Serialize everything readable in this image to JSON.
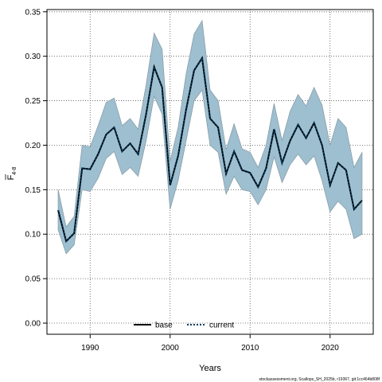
{
  "chart_data": {
    "type": "line",
    "xlabel": "Years",
    "ylabel_main": "F",
    "ylabel_sub": "4-8",
    "xlim": [
      1984.6,
      2025.4
    ],
    "ylim": [
      -0.0125,
      0.3525
    ],
    "xticks": [
      1990,
      2000,
      2010,
      2020
    ],
    "yticks": [
      0.0,
      0.05,
      0.1,
      0.15,
      0.2,
      0.25,
      0.3,
      0.35
    ],
    "ytick_labels": [
      "0.00",
      "0.05",
      "0.10",
      "0.15",
      "0.20",
      "0.25",
      "0.30",
      "0.35"
    ],
    "grid": true,
    "legend_position": "bottom",
    "x": [
      1986,
      1987,
      1988,
      1989,
      1990,
      1991,
      1992,
      1993,
      1994,
      1995,
      1996,
      1997,
      1998,
      1999,
      2000,
      2001,
      2002,
      2003,
      2004,
      2005,
      2006,
      2007,
      2008,
      2009,
      2010,
      2011,
      2012,
      2013,
      2014,
      2015,
      2016,
      2017,
      2018,
      2019,
      2020,
      2021,
      2022,
      2023,
      2024
    ],
    "band": {
      "lower": [
        0.105,
        0.078,
        0.088,
        0.15,
        0.148,
        0.163,
        0.185,
        0.193,
        0.167,
        0.175,
        0.165,
        0.205,
        0.255,
        0.235,
        0.128,
        0.16,
        0.205,
        0.25,
        0.262,
        0.2,
        0.192,
        0.145,
        0.165,
        0.15,
        0.148,
        0.133,
        0.15,
        0.187,
        0.158,
        0.178,
        0.19,
        0.178,
        0.188,
        0.16,
        0.125,
        0.137,
        0.128,
        0.095,
        0.1
      ],
      "upper": [
        0.15,
        0.108,
        0.12,
        0.2,
        0.198,
        0.222,
        0.248,
        0.253,
        0.222,
        0.23,
        0.218,
        0.268,
        0.326,
        0.308,
        0.182,
        0.22,
        0.28,
        0.325,
        0.34,
        0.262,
        0.25,
        0.195,
        0.224,
        0.196,
        0.192,
        0.175,
        0.2,
        0.247,
        0.205,
        0.238,
        0.257,
        0.244,
        0.265,
        0.245,
        0.2,
        0.23,
        0.22,
        0.175,
        0.192
      ],
      "color": "#9dbfd0",
      "edge": "#8a9ea8"
    },
    "series": [
      {
        "name": "base",
        "color": "#000000",
        "style": "solid",
        "values": [
          0.127,
          0.092,
          0.101,
          0.174,
          0.173,
          0.19,
          0.212,
          0.22,
          0.193,
          0.202,
          0.19,
          0.235,
          0.288,
          0.265,
          0.155,
          0.188,
          0.24,
          0.284,
          0.298,
          0.23,
          0.22,
          0.168,
          0.193,
          0.172,
          0.169,
          0.153,
          0.174,
          0.218,
          0.18,
          0.205,
          0.223,
          0.208,
          0.225,
          0.2,
          0.155,
          0.18,
          0.172,
          0.128,
          0.138
        ]
      },
      {
        "name": "current",
        "color": "#0b3c5d",
        "style": "dotted",
        "values": [
          0.127,
          0.092,
          0.101,
          0.174,
          0.173,
          0.19,
          0.212,
          0.22,
          0.193,
          0.202,
          0.19,
          0.235,
          0.288,
          0.265,
          0.155,
          0.188,
          0.24,
          0.284,
          0.298,
          0.23,
          0.22,
          0.168,
          0.193,
          0.172,
          0.169,
          0.153,
          0.174,
          0.218,
          0.18,
          0.205,
          0.223,
          0.208,
          0.225,
          0.2,
          0.155,
          0.18,
          0.172,
          0.128,
          0.138
        ]
      }
    ]
  },
  "footnote": "stockassessment.org, Scallops_SH_2025b, r19367, git:1cc464b808f"
}
